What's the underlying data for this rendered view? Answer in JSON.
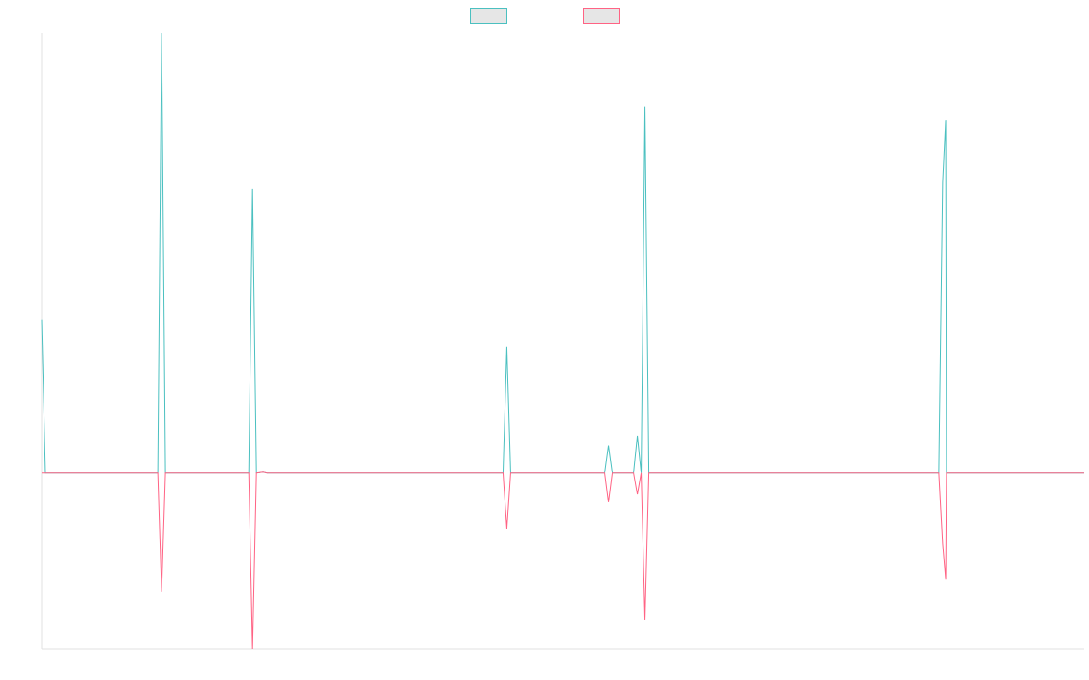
{
  "chart_data": {
    "type": "line",
    "title": "",
    "xlabel": "",
    "ylabel": "",
    "x_range": [
      0,
      287
    ],
    "ylim": [
      -20,
      50
    ],
    "grid": false,
    "legend": {
      "position": "top-center"
    },
    "series": [
      {
        "color": "#4bc0c0",
        "fill": "#e6e6e6",
        "points": [
          [
            0,
            17.4
          ],
          [
            1,
            0
          ],
          [
            32,
            0
          ],
          [
            33,
            50
          ],
          [
            34,
            0
          ],
          [
            57,
            0
          ],
          [
            58,
            32.3
          ],
          [
            59,
            0
          ],
          [
            61,
            0.1
          ],
          [
            62,
            0
          ],
          [
            127,
            0
          ],
          [
            128,
            14.3
          ],
          [
            129,
            0
          ],
          [
            155,
            0
          ],
          [
            156,
            3.1
          ],
          [
            157,
            0
          ],
          [
            163,
            0
          ],
          [
            164,
            4.2
          ],
          [
            165,
            0
          ],
          [
            166,
            41.6
          ],
          [
            167,
            0
          ],
          [
            247,
            0
          ],
          [
            248,
            33
          ],
          [
            248.8,
            40.1
          ],
          [
            249,
            0
          ],
          [
            287,
            0
          ]
        ]
      },
      {
        "color": "#ff6384",
        "fill": "#e6e6e6",
        "points": [
          [
            0,
            0
          ],
          [
            32,
            0
          ],
          [
            33,
            -13.5
          ],
          [
            34,
            0
          ],
          [
            57,
            0
          ],
          [
            58,
            -20
          ],
          [
            59,
            0
          ],
          [
            61,
            0.1
          ],
          [
            62,
            0
          ],
          [
            127,
            0
          ],
          [
            128,
            -6.3
          ],
          [
            129,
            0
          ],
          [
            155,
            0
          ],
          [
            156,
            -3.3
          ],
          [
            157,
            0
          ],
          [
            163,
            0
          ],
          [
            164,
            -2.4
          ],
          [
            165,
            0
          ],
          [
            166,
            -16.7
          ],
          [
            167,
            0
          ],
          [
            247,
            0
          ],
          [
            248,
            -8
          ],
          [
            248.8,
            -12.1
          ],
          [
            249,
            0
          ],
          [
            287,
            0
          ]
        ]
      }
    ]
  }
}
